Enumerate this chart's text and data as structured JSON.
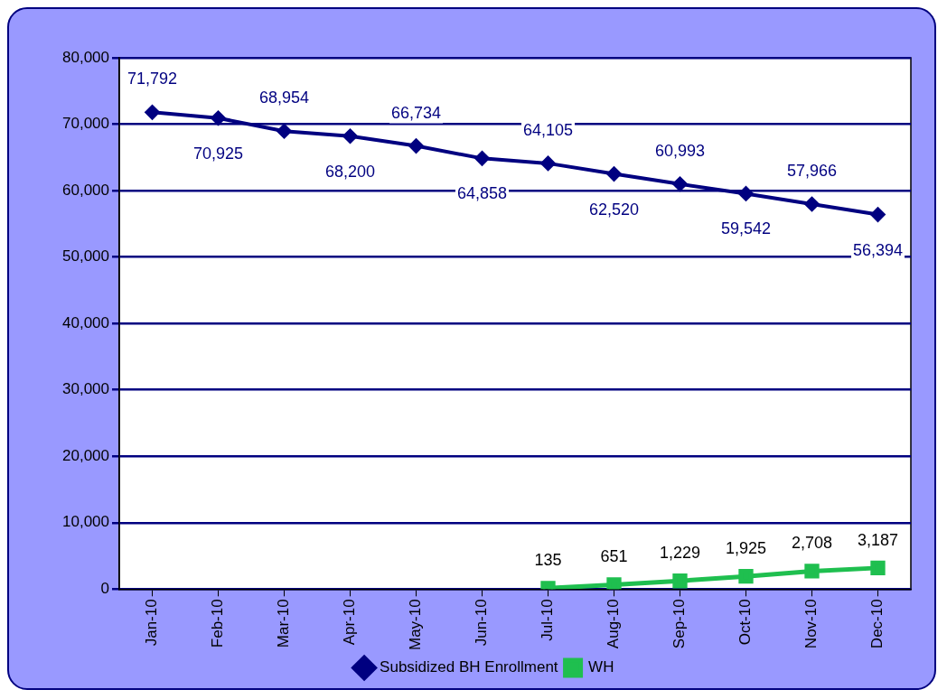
{
  "chart_data": {
    "type": "line",
    "categories": [
      "Jan-10",
      "Feb-10",
      "Mar-10",
      "Apr-10",
      "May-10",
      "Jun-10",
      "Jul-10",
      "Aug-10",
      "Sep-10",
      "Oct-10",
      "Nov-10",
      "Dec-10"
    ],
    "series": [
      {
        "name": "Subsidized BH Enrollment",
        "color": "#000080",
        "marker": "diamond",
        "values": [
          71792,
          70925,
          68954,
          68200,
          66734,
          64858,
          64105,
          62520,
          60993,
          59542,
          57966,
          56394
        ],
        "value_labels": [
          "71,792",
          "70,925",
          "68,954",
          "68,200",
          "66,734",
          "64,858",
          "64,105",
          "62,520",
          "60,993",
          "59,542",
          "57,966",
          "56,394"
        ]
      },
      {
        "name": "WH",
        "color": "#1fbf4f",
        "marker": "square",
        "values": [
          null,
          null,
          null,
          null,
          null,
          null,
          135,
          651,
          1229,
          1925,
          2708,
          3187
        ],
        "value_labels": [
          null,
          null,
          null,
          null,
          null,
          null,
          "135",
          "651",
          "1,229",
          "1,925",
          "2,708",
          "3,187"
        ]
      }
    ],
    "ylim": [
      0,
      80000
    ],
    "yticks": [
      0,
      {
        "value": 10000,
        "label": "10,000"
      },
      {
        "value": 20000,
        "label": "20,000"
      },
      {
        "value": 30000,
        "label": "30,000"
      },
      {
        "value": 40000,
        "label": "40,000"
      },
      {
        "value": 50000,
        "label": "50,000"
      },
      {
        "value": 60000,
        "label": "60,000"
      },
      {
        "value": 70000,
        "label": "70,000"
      },
      {
        "value": 80000,
        "label": "80,000"
      }
    ],
    "grid": "y",
    "legend": "bottom",
    "line_style": "solid"
  }
}
